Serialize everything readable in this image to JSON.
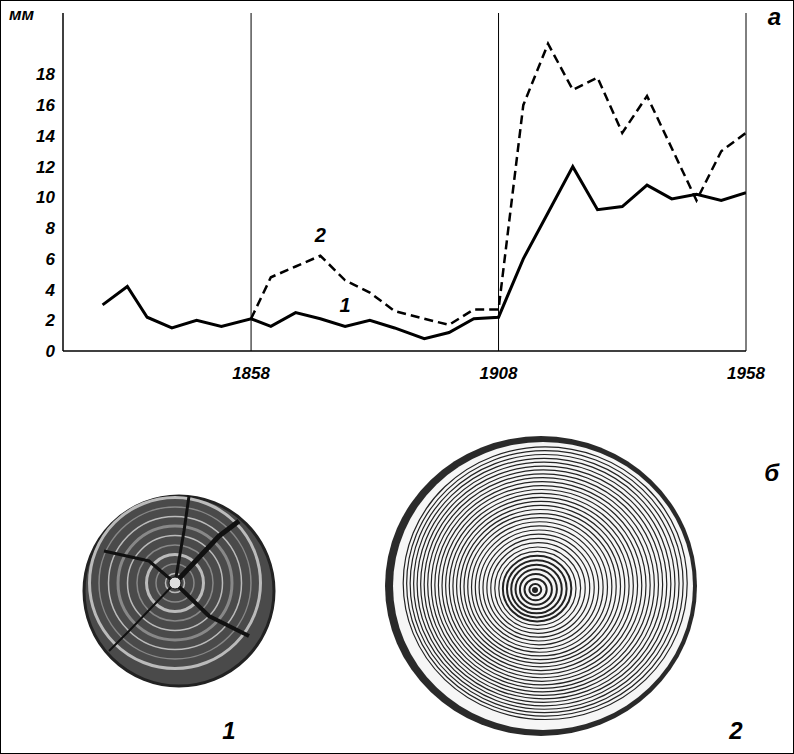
{
  "chart_data": {
    "type": "line",
    "panel_letter": "а",
    "y_label": "мм",
    "x": [
      1828,
      1833,
      1837,
      1842,
      1847,
      1852,
      1858,
      1862,
      1867,
      1872,
      1877,
      1882,
      1887,
      1893,
      1898,
      1903,
      1908,
      1913,
      1918,
      1923,
      1928,
      1933,
      1938,
      1943,
      1948,
      1953,
      1958
    ],
    "series": [
      {
        "name": "1",
        "color": "#000000",
        "line_style": "solid",
        "values": [
          3.0,
          4.2,
          2.2,
          1.5,
          2.0,
          1.6,
          2.1,
          1.6,
          2.5,
          2.1,
          1.6,
          2.0,
          1.5,
          0.8,
          1.2,
          2.1,
          2.2,
          6.0,
          9.0,
          12.0,
          9.2,
          9.4,
          10.8,
          9.9,
          10.2,
          9.8,
          10.3
        ]
      },
      {
        "name": "2",
        "color": "#000000",
        "line_style": "dashed",
        "values": [
          null,
          null,
          null,
          null,
          null,
          null,
          2.1,
          4.8,
          5.5,
          6.2,
          4.6,
          3.8,
          2.6,
          2.1,
          1.7,
          2.7,
          2.7,
          16.0,
          20.0,
          17.0,
          17.8,
          14.2,
          16.6,
          13.2,
          9.8,
          13.0,
          14.2
        ]
      }
    ],
    "xlim": [
      1820,
      1958
    ],
    "xticks": [
      1858,
      1908,
      1958
    ],
    "ylim": [
      0,
      22
    ],
    "yticks": [
      0,
      2,
      4,
      6,
      8,
      10,
      12,
      14,
      16,
      18
    ],
    "grid": "x"
  },
  "photos": {
    "panel_letter": "б",
    "items": [
      "1",
      "2"
    ]
  }
}
